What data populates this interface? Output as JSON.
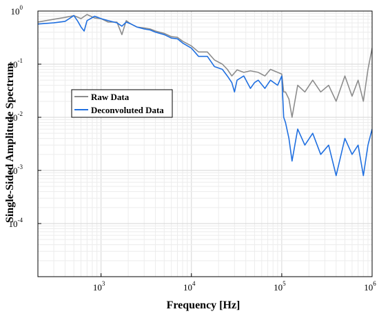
{
  "chart_data": {
    "type": "line",
    "xlabel": "Frequency [Hz]",
    "ylabel": "Single-Sided Amplitude Spectrum",
    "xscale": "log",
    "yscale": "log",
    "xlim": [
      200,
      1000000
    ],
    "ylim": [
      1e-05,
      1
    ],
    "grid": true,
    "legend_position": "center-left",
    "x_ticks": [
      {
        "base": "10",
        "exp": "3"
      },
      {
        "base": "10",
        "exp": "4"
      },
      {
        "base": "10",
        "exp": "5"
      },
      {
        "base": "10",
        "exp": "6"
      }
    ],
    "y_ticks": [
      {
        "value": 1,
        "label": "10",
        "exp": "0"
      },
      {
        "value": 0.1,
        "label": "10",
        "exp": "-1"
      },
      {
        "value": 0.01,
        "label": "10",
        "exp": "-2"
      },
      {
        "value": 0.001,
        "label": "10",
        "exp": "-3"
      },
      {
        "value": 0.0001,
        "label": "10",
        "exp": "-4"
      }
    ],
    "series": [
      {
        "name": "Raw Data",
        "color": "#8c8c8c",
        "x": [
          200,
          300,
          400,
          500,
          600,
          700,
          850,
          1000,
          1200,
          1500,
          1700,
          1900,
          2100,
          2500,
          3000,
          3500,
          4000,
          5000,
          6000,
          7000,
          8000,
          10000,
          12000,
          15000,
          18000,
          22000,
          25000,
          28000,
          32000,
          38000,
          45000,
          55000,
          65000,
          75000,
          90000,
          100000,
          105000,
          110000,
          120000,
          130000,
          150000,
          180000,
          220000,
          270000,
          330000,
          400000,
          500000,
          600000,
          700000,
          800000,
          900000,
          1000000
        ],
        "y": [
          0.62,
          0.7,
          0.76,
          0.82,
          0.72,
          0.86,
          0.74,
          0.72,
          0.62,
          0.62,
          0.36,
          0.66,
          0.58,
          0.5,
          0.48,
          0.46,
          0.42,
          0.38,
          0.33,
          0.32,
          0.27,
          0.22,
          0.17,
          0.17,
          0.12,
          0.1,
          0.08,
          0.06,
          0.078,
          0.07,
          0.075,
          0.07,
          0.06,
          0.08,
          0.07,
          0.065,
          0.03,
          0.03,
          0.022,
          0.01,
          0.04,
          0.03,
          0.05,
          0.03,
          0.04,
          0.02,
          0.06,
          0.025,
          0.05,
          0.02,
          0.08,
          0.2
        ]
      },
      {
        "name": "Deconvoluted Data",
        "color": "#1f6fe0",
        "x": [
          200,
          300,
          400,
          500,
          550,
          600,
          650,
          700,
          850,
          1000,
          1200,
          1500,
          1700,
          1900,
          2100,
          2500,
          3000,
          3500,
          4000,
          5000,
          6000,
          7000,
          8000,
          10000,
          12000,
          15000,
          18000,
          22000,
          25000,
          28000,
          30000,
          32000,
          38000,
          45000,
          50000,
          55000,
          65000,
          75000,
          90000,
          100000,
          105000,
          110000,
          120000,
          130000,
          150000,
          180000,
          220000,
          270000,
          330000,
          400000,
          500000,
          600000,
          700000,
          800000,
          900000,
          1000000
        ],
        "y": [
          0.57,
          0.6,
          0.64,
          0.82,
          0.65,
          0.5,
          0.42,
          0.66,
          0.8,
          0.72,
          0.66,
          0.6,
          0.52,
          0.62,
          0.58,
          0.5,
          0.46,
          0.44,
          0.4,
          0.36,
          0.31,
          0.3,
          0.25,
          0.2,
          0.14,
          0.14,
          0.09,
          0.08,
          0.06,
          0.045,
          0.03,
          0.05,
          0.06,
          0.035,
          0.045,
          0.05,
          0.035,
          0.05,
          0.04,
          0.06,
          0.01,
          0.008,
          0.004,
          0.0015,
          0.006,
          0.003,
          0.005,
          0.002,
          0.003,
          0.0008,
          0.004,
          0.002,
          0.003,
          0.0008,
          0.003,
          0.006
        ]
      }
    ]
  }
}
